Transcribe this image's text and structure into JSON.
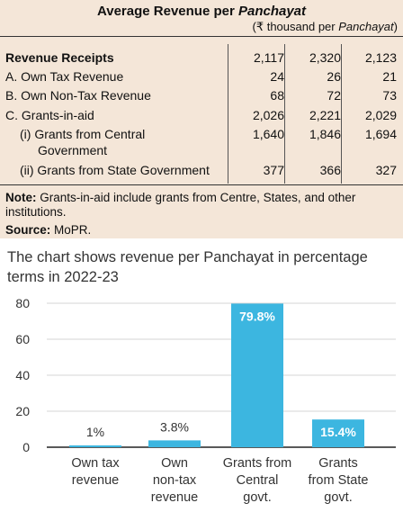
{
  "table": {
    "title_main": "Average Revenue per ",
    "title_italic": "Panchayat",
    "unit_prefix": "(₹ thousand per ",
    "unit_italic": "Panchayat",
    "unit_suffix": ")",
    "rows": [
      {
        "label": "Revenue Receipts",
        "values": [
          "2,117",
          "2,320",
          "2,123"
        ]
      },
      {
        "label": "A. Own Tax Revenue",
        "values": [
          "24",
          "26",
          "21"
        ]
      },
      {
        "label": "B. Own Non-Tax Revenue",
        "values": [
          "68",
          "72",
          "73"
        ]
      },
      {
        "label": "C. Grants-in-aid",
        "values": [
          "2,026",
          "2,221",
          "2,029"
        ]
      },
      {
        "label": "(i)  Grants from Central",
        "label2": "Government",
        "values": [
          "1,640",
          "1,846",
          "1,694"
        ]
      },
      {
        "label": "(ii) Grants from State Government",
        "values": [
          "377",
          "366",
          "327"
        ]
      }
    ],
    "note_label": "Note:",
    "note_text": " Grants-in-aid include grants from Centre, States, and other institutions.",
    "source_label": "Source:",
    "source_text": " MoPR."
  },
  "chart_data": {
    "type": "bar",
    "title": "The chart shows revenue per Panchayat in percentage terms in 2022-23",
    "categories": [
      [
        "Own tax",
        "revenue"
      ],
      [
        "Own",
        "non-tax",
        "revenue"
      ],
      [
        "Grants from",
        "Central",
        "govt."
      ],
      [
        "Grants",
        "from State",
        "govt."
      ]
    ],
    "values": [
      1,
      3.8,
      79.8,
      15.4
    ],
    "labels": [
      "1%",
      "3.8%",
      "79.8%",
      "15.4%"
    ],
    "yticks": [
      0,
      20,
      40,
      60,
      80
    ],
    "ylim": [
      0,
      80
    ],
    "grid": true,
    "colors": {
      "bar": "#3cb6e0",
      "grid": "#d6d6d6",
      "label_dark": "#333333",
      "label_light": "#ffffff"
    }
  }
}
